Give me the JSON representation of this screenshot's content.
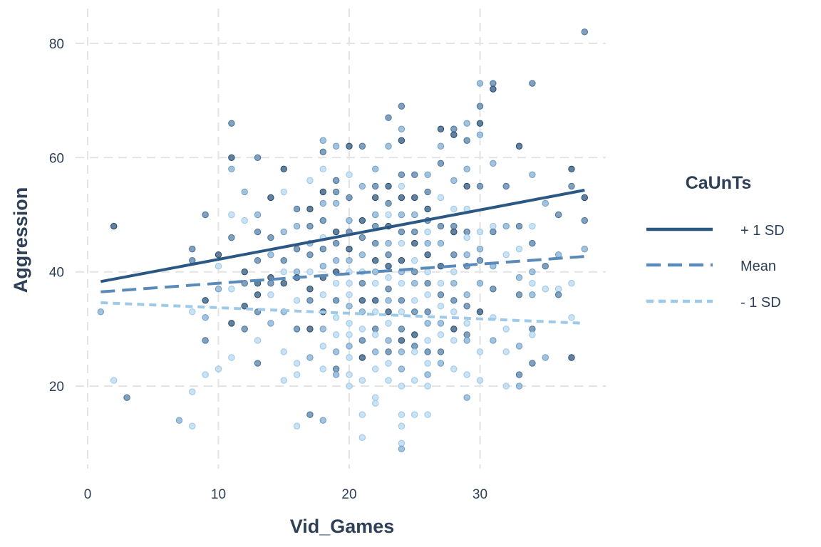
{
  "chart_data": {
    "type": "scatter",
    "xlabel": "Vid_Games",
    "ylabel": "Aggression",
    "xlim": [
      0,
      38
    ],
    "ylim": [
      8,
      83
    ],
    "x_ticks": [
      "0",
      "10",
      "20",
      "30"
    ],
    "y_ticks": [
      "20",
      "40",
      "60",
      "80"
    ],
    "grid": true,
    "legend": {
      "title": "CaUnTs",
      "placement": "right",
      "entries": [
        {
          "label": "+ 1 SD",
          "color": "#2a5783",
          "style": "solid"
        },
        {
          "label": "Mean",
          "color": "#5a8ab9",
          "style": "dashed"
        },
        {
          "label": "- 1 SD",
          "color": "#9ecae9",
          "style": "dotted"
        }
      ]
    },
    "lines": [
      {
        "label": "+ 1 SD",
        "x": [
          1,
          38
        ],
        "y": [
          38.3,
          54.3
        ]
      },
      {
        "label": "Mean",
        "x": [
          1,
          38
        ],
        "y": [
          36.5,
          42.7
        ]
      },
      {
        "label": "- 1 SD",
        "x": [
          1,
          38
        ],
        "y": [
          34.6,
          31.0
        ]
      }
    ],
    "points": [
      [
        1,
        33,
        1
      ],
      [
        2,
        48,
        3
      ],
      [
        2,
        21,
        0
      ],
      [
        3,
        18,
        2
      ],
      [
        7,
        14,
        1
      ],
      [
        8,
        13,
        0
      ],
      [
        8,
        19,
        0
      ],
      [
        8,
        33,
        0
      ],
      [
        8,
        42,
        2
      ],
      [
        8,
        44,
        2
      ],
      [
        9,
        50,
        2
      ],
      [
        9,
        35,
        3
      ],
      [
        9,
        32,
        1
      ],
      [
        9,
        28,
        2
      ],
      [
        9,
        22,
        0
      ],
      [
        10,
        43,
        3
      ],
      [
        10,
        41,
        0
      ],
      [
        10,
        37,
        1
      ],
      [
        10,
        23,
        0
      ],
      [
        11,
        66,
        2
      ],
      [
        11,
        60,
        3
      ],
      [
        11,
        58,
        1
      ],
      [
        11,
        50,
        0
      ],
      [
        11,
        46,
        2
      ],
      [
        11,
        37,
        0
      ],
      [
        11,
        31,
        3
      ],
      [
        11,
        25,
        0
      ],
      [
        12,
        54,
        1
      ],
      [
        12,
        49,
        0
      ],
      [
        12,
        40,
        3
      ],
      [
        12,
        38,
        2
      ],
      [
        12,
        34,
        3
      ],
      [
        12,
        30,
        2
      ],
      [
        13,
        60,
        2
      ],
      [
        13,
        50,
        1
      ],
      [
        13,
        47,
        2
      ],
      [
        13,
        42,
        2
      ],
      [
        13,
        38,
        3
      ],
      [
        13,
        36,
        3
      ],
      [
        13,
        33,
        2
      ],
      [
        13,
        28,
        0
      ],
      [
        13,
        24,
        2
      ],
      [
        14,
        53,
        3
      ],
      [
        14,
        46,
        2
      ],
      [
        14,
        43,
        1
      ],
      [
        14,
        39,
        3
      ],
      [
        14,
        38,
        2
      ],
      [
        14,
        36,
        0
      ],
      [
        14,
        31,
        1
      ],
      [
        15,
        58,
        3
      ],
      [
        15,
        54,
        0
      ],
      [
        15,
        47,
        1
      ],
      [
        15,
        42,
        2
      ],
      [
        15,
        40,
        0
      ],
      [
        15,
        38,
        3
      ],
      [
        15,
        33,
        1
      ],
      [
        15,
        26,
        0
      ],
      [
        15,
        21,
        0
      ],
      [
        16,
        51,
        2
      ],
      [
        16,
        48,
        1
      ],
      [
        16,
        44,
        2
      ],
      [
        16,
        40,
        1
      ],
      [
        16,
        39,
        3
      ],
      [
        16,
        35,
        0
      ],
      [
        16,
        30,
        2
      ],
      [
        16,
        24,
        0
      ],
      [
        16,
        22,
        0
      ],
      [
        16,
        13,
        0
      ],
      [
        17,
        56,
        0
      ],
      [
        17,
        51,
        3
      ],
      [
        17,
        48,
        2
      ],
      [
        17,
        45,
        1
      ],
      [
        17,
        43,
        2
      ],
      [
        17,
        40,
        0
      ],
      [
        17,
        37,
        3
      ],
      [
        17,
        35,
        2
      ],
      [
        17,
        30,
        3
      ],
      [
        17,
        25,
        1
      ],
      [
        17,
        15,
        2
      ],
      [
        18,
        63,
        1
      ],
      [
        18,
        61,
        2
      ],
      [
        18,
        58,
        0
      ],
      [
        18,
        54,
        3
      ],
      [
        18,
        52,
        1
      ],
      [
        18,
        49,
        2
      ],
      [
        18,
        46,
        0
      ],
      [
        18,
        44,
        2
      ],
      [
        18,
        41,
        1
      ],
      [
        18,
        39,
        3
      ],
      [
        18,
        36,
        0
      ],
      [
        18,
        33,
        3
      ],
      [
        18,
        30,
        1
      ],
      [
        18,
        27,
        0
      ],
      [
        18,
        23,
        0
      ],
      [
        18,
        14,
        1
      ],
      [
        19,
        62,
        1
      ],
      [
        19,
        56,
        2
      ],
      [
        19,
        54,
        2
      ],
      [
        19,
        52,
        1
      ],
      [
        19,
        47,
        3
      ],
      [
        19,
        45,
        2
      ],
      [
        19,
        42,
        1
      ],
      [
        19,
        40,
        3
      ],
      [
        19,
        38,
        0
      ],
      [
        19,
        35,
        2
      ],
      [
        19,
        32,
        0
      ],
      [
        19,
        29,
        0
      ],
      [
        19,
        26,
        1
      ],
      [
        19,
        23,
        2
      ],
      [
        19,
        22,
        1
      ],
      [
        20,
        62,
        3
      ],
      [
        20,
        57,
        0
      ],
      [
        20,
        53,
        2
      ],
      [
        20,
        49,
        1
      ],
      [
        20,
        47,
        2
      ],
      [
        20,
        44,
        3
      ],
      [
        20,
        42,
        1
      ],
      [
        20,
        40,
        0
      ],
      [
        20,
        38,
        0
      ],
      [
        20,
        36,
        0
      ],
      [
        20,
        34,
        1
      ],
      [
        20,
        31,
        0
      ],
      [
        20,
        29,
        0
      ],
      [
        20,
        27,
        1
      ],
      [
        20,
        25,
        0
      ],
      [
        20,
        22,
        0
      ],
      [
        20,
        20,
        0
      ],
      [
        21,
        62,
        2
      ],
      [
        21,
        55,
        1
      ],
      [
        21,
        49,
        3
      ],
      [
        21,
        46,
        2
      ],
      [
        21,
        43,
        1
      ],
      [
        21,
        40,
        0
      ],
      [
        21,
        38,
        2
      ],
      [
        21,
        35,
        3
      ],
      [
        21,
        33,
        1
      ],
      [
        21,
        30,
        0
      ],
      [
        21,
        28,
        2
      ],
      [
        21,
        25,
        3
      ],
      [
        21,
        21,
        0
      ],
      [
        21,
        15,
        0
      ],
      [
        21,
        11,
        0
      ],
      [
        22,
        58,
        1
      ],
      [
        22,
        55,
        2
      ],
      [
        22,
        53,
        3
      ],
      [
        22,
        50,
        1
      ],
      [
        22,
        48,
        2
      ],
      [
        22,
        45,
        2
      ],
      [
        22,
        42,
        3
      ],
      [
        22,
        40,
        1
      ],
      [
        22,
        38,
        0
      ],
      [
        22,
        35,
        3
      ],
      [
        22,
        33,
        0
      ],
      [
        22,
        30,
        2
      ],
      [
        22,
        29,
        0
      ],
      [
        22,
        26,
        1
      ],
      [
        22,
        23,
        0
      ],
      [
        22,
        18,
        0
      ],
      [
        22,
        17,
        0
      ],
      [
        23,
        67,
        2
      ],
      [
        23,
        62,
        1
      ],
      [
        23,
        55,
        3
      ],
      [
        23,
        52,
        2
      ],
      [
        23,
        50,
        0
      ],
      [
        23,
        48,
        3
      ],
      [
        23,
        45,
        1
      ],
      [
        23,
        43,
        2
      ],
      [
        23,
        41,
        3
      ],
      [
        23,
        39,
        0
      ],
      [
        23,
        37,
        2
      ],
      [
        23,
        35,
        1
      ],
      [
        23,
        33,
        3
      ],
      [
        23,
        31,
        0
      ],
      [
        23,
        28,
        1
      ],
      [
        23,
        26,
        2
      ],
      [
        23,
        24,
        0
      ],
      [
        23,
        21,
        0
      ],
      [
        24,
        69,
        2
      ],
      [
        24,
        65,
        1
      ],
      [
        24,
        63,
        3
      ],
      [
        24,
        57,
        2
      ],
      [
        24,
        55,
        0
      ],
      [
        24,
        53,
        3
      ],
      [
        24,
        50,
        1
      ],
      [
        24,
        47,
        2
      ],
      [
        24,
        45,
        0
      ],
      [
        24,
        42,
        3
      ],
      [
        24,
        40,
        1
      ],
      [
        24,
        38,
        0
      ],
      [
        24,
        35,
        2
      ],
      [
        24,
        33,
        0
      ],
      [
        24,
        30,
        2
      ],
      [
        24,
        28,
        3
      ],
      [
        24,
        26,
        1
      ],
      [
        24,
        23,
        1
      ],
      [
        24,
        20,
        0
      ],
      [
        24,
        15,
        0
      ],
      [
        24,
        13,
        0
      ],
      [
        24,
        10,
        0
      ],
      [
        24,
        9,
        1
      ],
      [
        25,
        57,
        2
      ],
      [
        25,
        53,
        3
      ],
      [
        25,
        50,
        1
      ],
      [
        25,
        47,
        2
      ],
      [
        25,
        45,
        3
      ],
      [
        25,
        42,
        0
      ],
      [
        25,
        40,
        2
      ],
      [
        25,
        38,
        1
      ],
      [
        25,
        35,
        0
      ],
      [
        25,
        33,
        2
      ],
      [
        25,
        29,
        3
      ],
      [
        25,
        27,
        2
      ],
      [
        25,
        26,
        0
      ],
      [
        25,
        21,
        0
      ],
      [
        25,
        15,
        0
      ],
      [
        26,
        57,
        1
      ],
      [
        26,
        54,
        2
      ],
      [
        26,
        51,
        3
      ],
      [
        26,
        49,
        2
      ],
      [
        26,
        47,
        0
      ],
      [
        26,
        45,
        1
      ],
      [
        26,
        43,
        3
      ],
      [
        26,
        40,
        0
      ],
      [
        26,
        38,
        2
      ],
      [
        26,
        36,
        0
      ],
      [
        26,
        33,
        2
      ],
      [
        26,
        31,
        1
      ],
      [
        26,
        28,
        0
      ],
      [
        26,
        26,
        2
      ],
      [
        26,
        24,
        0
      ],
      [
        26,
        22,
        1
      ],
      [
        26,
        20,
        0
      ],
      [
        26,
        15,
        0
      ],
      [
        27,
        65,
        3
      ],
      [
        27,
        62,
        1
      ],
      [
        27,
        59,
        2
      ],
      [
        27,
        53,
        0
      ],
      [
        27,
        48,
        2
      ],
      [
        27,
        45,
        1
      ],
      [
        27,
        41,
        3
      ],
      [
        27,
        38,
        0
      ],
      [
        27,
        36,
        2
      ],
      [
        27,
        34,
        0
      ],
      [
        27,
        31,
        1
      ],
      [
        27,
        29,
        0
      ],
      [
        27,
        26,
        2
      ],
      [
        27,
        24,
        1
      ],
      [
        28,
        65,
        2
      ],
      [
        28,
        64,
        3
      ],
      [
        28,
        56,
        1
      ],
      [
        28,
        51,
        0
      ],
      [
        28,
        48,
        2
      ],
      [
        28,
        47,
        3
      ],
      [
        28,
        43,
        2
      ],
      [
        28,
        40,
        0
      ],
      [
        28,
        38,
        1
      ],
      [
        28,
        35,
        2
      ],
      [
        28,
        33,
        0
      ],
      [
        28,
        30,
        3
      ],
      [
        28,
        28,
        0
      ],
      [
        28,
        23,
        0
      ],
      [
        29,
        66,
        1
      ],
      [
        29,
        63,
        2
      ],
      [
        29,
        58,
        1
      ],
      [
        29,
        55,
        3
      ],
      [
        29,
        51,
        0
      ],
      [
        29,
        47,
        2
      ],
      [
        29,
        46,
        0
      ],
      [
        29,
        43,
        1
      ],
      [
        29,
        41,
        2
      ],
      [
        29,
        36,
        1
      ],
      [
        29,
        34,
        2
      ],
      [
        29,
        31,
        0
      ],
      [
        29,
        29,
        2
      ],
      [
        29,
        28,
        1
      ],
      [
        29,
        22,
        0
      ],
      [
        29,
        18,
        1
      ],
      [
        30,
        73,
        1
      ],
      [
        30,
        69,
        2
      ],
      [
        30,
        66,
        3
      ],
      [
        30,
        64,
        1
      ],
      [
        30,
        55,
        2
      ],
      [
        30,
        47,
        0
      ],
      [
        30,
        44,
        1
      ],
      [
        30,
        42,
        2
      ],
      [
        30,
        38,
        1
      ],
      [
        30,
        33,
        3
      ],
      [
        30,
        26,
        0
      ],
      [
        30,
        21,
        0
      ],
      [
        31,
        73,
        2
      ],
      [
        31,
        72,
        3
      ],
      [
        31,
        59,
        1
      ],
      [
        31,
        48,
        0
      ],
      [
        31,
        47,
        2
      ],
      [
        31,
        41,
        1
      ],
      [
        31,
        37,
        2
      ],
      [
        31,
        32,
        0
      ],
      [
        31,
        28,
        1
      ],
      [
        32,
        55,
        2
      ],
      [
        32,
        48,
        1
      ],
      [
        32,
        43,
        0
      ],
      [
        32,
        30,
        0
      ],
      [
        32,
        26,
        0
      ],
      [
        32,
        20,
        0
      ],
      [
        33,
        62,
        3
      ],
      [
        33,
        48,
        2
      ],
      [
        33,
        44,
        0
      ],
      [
        33,
        39,
        1
      ],
      [
        33,
        36,
        2
      ],
      [
        33,
        27,
        1
      ],
      [
        33,
        22,
        2
      ],
      [
        33,
        20,
        1
      ],
      [
        34,
        73,
        2
      ],
      [
        34,
        57,
        1
      ],
      [
        34,
        48,
        0
      ],
      [
        34,
        45,
        2
      ],
      [
        34,
        40,
        1
      ],
      [
        34,
        38,
        0
      ],
      [
        34,
        36,
        1
      ],
      [
        34,
        30,
        2
      ],
      [
        34,
        29,
        0
      ],
      [
        34,
        24,
        2
      ],
      [
        35,
        52,
        1
      ],
      [
        35,
        41,
        2
      ],
      [
        35,
        37,
        0
      ],
      [
        35,
        25,
        1
      ],
      [
        36,
        50,
        2
      ],
      [
        36,
        43,
        1
      ],
      [
        36,
        37,
        0
      ],
      [
        36,
        36,
        2
      ],
      [
        37,
        58,
        3
      ],
      [
        37,
        55,
        2
      ],
      [
        37,
        38,
        0
      ],
      [
        37,
        32,
        0
      ],
      [
        37,
        25,
        3
      ],
      [
        38,
        82,
        2
      ],
      [
        38,
        53,
        3
      ],
      [
        38,
        49,
        2
      ],
      [
        38,
        44,
        1
      ]
    ],
    "point_colors": [
      "#b9dcf3",
      "#8ab4d8",
      "#5f89af",
      "#3b6287"
    ]
  }
}
